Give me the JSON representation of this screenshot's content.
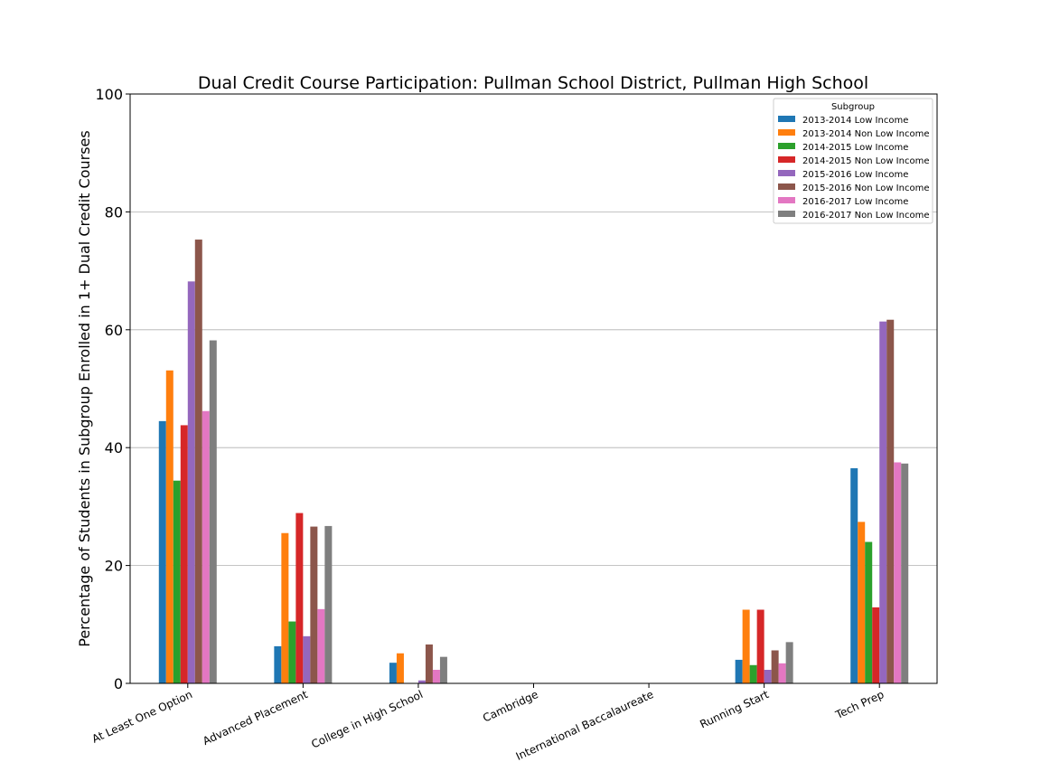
{
  "chart_data": {
    "type": "bar",
    "title": "Dual Credit Course Participation: Pullman School District, Pullman High School",
    "xlabel": "",
    "ylabel": "Percentage of Students in Subgroup Enrolled in 1+ Dual Credit Courses",
    "ylim": [
      0,
      100
    ],
    "yticks": [
      "0",
      "20",
      "40",
      "60",
      "80",
      "100"
    ],
    "grid": "horizontal",
    "legend_title": "Subgroup",
    "legend_position": "top-right",
    "categories": [
      "At Least One Option",
      "Advanced Placement",
      "College in High School",
      "Cambridge",
      "International Baccalaureate",
      "Running Start",
      "Tech Prep"
    ],
    "series": [
      {
        "name": "2013-2014 Low Income",
        "color": "#1f77b4",
        "values": [
          44.5,
          6.3,
          3.5,
          0,
          0,
          4.0,
          36.5
        ]
      },
      {
        "name": "2013-2014 Non Low Income",
        "color": "#ff7f0e",
        "values": [
          53.1,
          25.5,
          5.1,
          0,
          0,
          12.5,
          27.4
        ]
      },
      {
        "name": "2014-2015 Low Income",
        "color": "#2ca02c",
        "values": [
          34.4,
          10.5,
          0,
          0,
          0,
          3.1,
          24.0
        ]
      },
      {
        "name": "2014-2015 Non Low Income",
        "color": "#d62728",
        "values": [
          43.8,
          28.9,
          0,
          0,
          0,
          12.5,
          12.9
        ]
      },
      {
        "name": "2015-2016 Low Income",
        "color": "#9467bd",
        "values": [
          68.2,
          8.0,
          0.5,
          0,
          0,
          2.3,
          61.4
        ]
      },
      {
        "name": "2015-2016 Non Low Income",
        "color": "#8c564b",
        "values": [
          75.3,
          26.6,
          6.6,
          0,
          0,
          5.6,
          61.7
        ]
      },
      {
        "name": "2016-2017 Low Income",
        "color": "#e377c2",
        "values": [
          46.2,
          12.6,
          2.3,
          0,
          0,
          3.4,
          37.5
        ]
      },
      {
        "name": "2016-2017 Non Low Income",
        "color": "#7f7f7f",
        "values": [
          58.2,
          26.7,
          4.5,
          0,
          0,
          7.0,
          37.3
        ]
      }
    ]
  }
}
